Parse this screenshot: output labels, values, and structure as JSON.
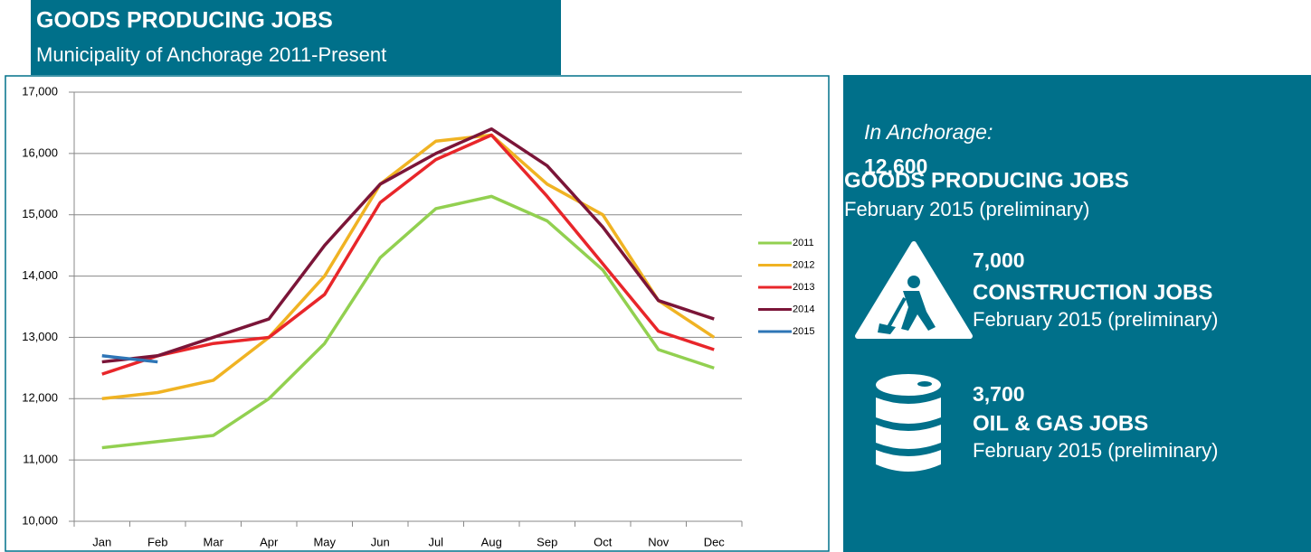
{
  "chart_data": {
    "type": "line",
    "title": "GOODS PRODUCING JOBS",
    "subtitle": "Municipality of Anchorage 2011-Present",
    "categories": [
      "Jan",
      "Feb",
      "Mar",
      "Apr",
      "May",
      "Jun",
      "Jul",
      "Aug",
      "Sep",
      "Oct",
      "Nov",
      "Dec"
    ],
    "series": [
      {
        "name": "2011",
        "color": "#92d050",
        "values": [
          11200,
          11300,
          11400,
          12000,
          12900,
          14300,
          15100,
          15300,
          14900,
          14100,
          12800,
          12500
        ]
      },
      {
        "name": "2012",
        "color": "#f0b323",
        "values": [
          12000,
          12100,
          12300,
          13000,
          14000,
          15500,
          16200,
          16300,
          15500,
          15000,
          13600,
          13000
        ]
      },
      {
        "name": "2013",
        "color": "#e8262a",
        "values": [
          12400,
          12700,
          12900,
          13000,
          13700,
          15200,
          15900,
          16300,
          15300,
          14200,
          13100,
          12800
        ]
      },
      {
        "name": "2014",
        "color": "#7b1538",
        "values": [
          12600,
          12700,
          13000,
          13300,
          14500,
          15500,
          16000,
          16400,
          15800,
          14800,
          13600,
          13300
        ]
      },
      {
        "name": "2015",
        "color": "#2e75b6",
        "values": [
          12700,
          12600,
          null,
          null,
          null,
          null,
          null,
          null,
          null,
          null,
          null,
          null
        ]
      }
    ],
    "ylim": [
      10000,
      17000
    ],
    "yticks": [
      {
        "value": 10000,
        "label": "10,000"
      },
      {
        "value": 11000,
        "label": "11,000"
      },
      {
        "value": 12000,
        "label": "12,000"
      },
      {
        "value": 13000,
        "label": "13,000"
      },
      {
        "value": 14000,
        "label": "14,000"
      },
      {
        "value": 15000,
        "label": "15,000"
      },
      {
        "value": 16000,
        "label": "16,000"
      },
      {
        "value": 17000,
        "label": "17,000"
      }
    ],
    "grid": true,
    "legend": "right"
  },
  "panel": {
    "intro": "In Anchorage:",
    "items": [
      {
        "value": "12,600",
        "title": "GOODS PRODUCING JOBS",
        "subtitle": "February 2015 (preliminary)"
      },
      {
        "value": "7,000",
        "title": "CONSTRUCTION JOBS",
        "subtitle": "February 2015 (preliminary)"
      },
      {
        "value": "3,700",
        "title": "OIL & GAS JOBS",
        "subtitle": "February 2015 (preliminary)"
      }
    ]
  }
}
